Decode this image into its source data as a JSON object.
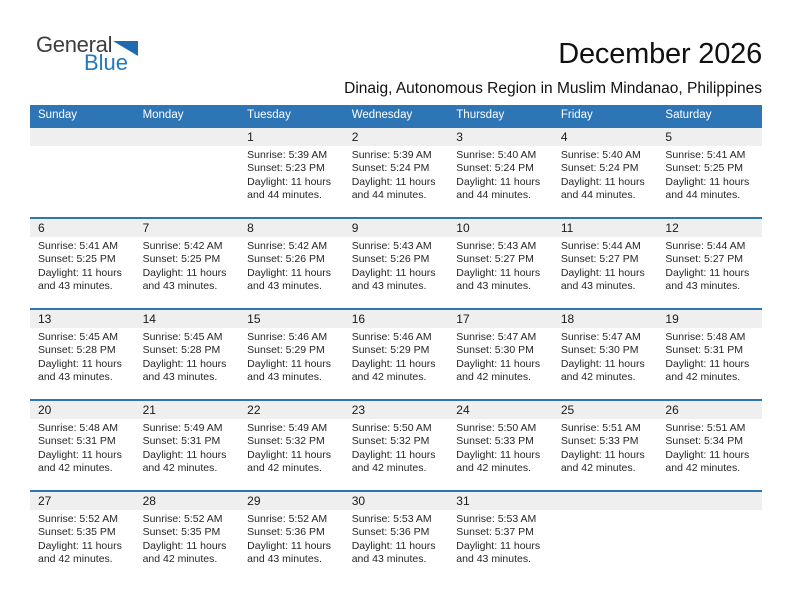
{
  "logo": {
    "text_top": "General",
    "text_bottom": "Blue"
  },
  "page": {
    "title": "December 2026",
    "subtitle": "Dinaig, Autonomous Region in Muslim Mindanao, Philippines"
  },
  "colors": {
    "header_blue": "#2E75B6",
    "row_border_blue": "#2E75B6",
    "day_band_gray": "#EFEFEF",
    "logo_blue": "#2278BF",
    "logo_triangle_blue": "#1E6CB0",
    "logo_dark": "#3D3D3D",
    "text_dark": "#262626"
  },
  "calendar": {
    "day_headers": [
      "Sunday",
      "Monday",
      "Tuesday",
      "Wednesday",
      "Thursday",
      "Friday",
      "Saturday"
    ],
    "weeks": [
      [
        {
          "day": "",
          "lines": []
        },
        {
          "day": "",
          "lines": []
        },
        {
          "day": "1",
          "lines": [
            "Sunrise: 5:39 AM",
            "Sunset: 5:23 PM",
            "Daylight: 11 hours",
            "and 44 minutes."
          ]
        },
        {
          "day": "2",
          "lines": [
            "Sunrise: 5:39 AM",
            "Sunset: 5:24 PM",
            "Daylight: 11 hours",
            "and 44 minutes."
          ]
        },
        {
          "day": "3",
          "lines": [
            "Sunrise: 5:40 AM",
            "Sunset: 5:24 PM",
            "Daylight: 11 hours",
            "and 44 minutes."
          ]
        },
        {
          "day": "4",
          "lines": [
            "Sunrise: 5:40 AM",
            "Sunset: 5:24 PM",
            "Daylight: 11 hours",
            "and 44 minutes."
          ]
        },
        {
          "day": "5",
          "lines": [
            "Sunrise: 5:41 AM",
            "Sunset: 5:25 PM",
            "Daylight: 11 hours",
            "and 44 minutes."
          ]
        }
      ],
      [
        {
          "day": "6",
          "lines": [
            "Sunrise: 5:41 AM",
            "Sunset: 5:25 PM",
            "Daylight: 11 hours",
            "and 43 minutes."
          ]
        },
        {
          "day": "7",
          "lines": [
            "Sunrise: 5:42 AM",
            "Sunset: 5:25 PM",
            "Daylight: 11 hours",
            "and 43 minutes."
          ]
        },
        {
          "day": "8",
          "lines": [
            "Sunrise: 5:42 AM",
            "Sunset: 5:26 PM",
            "Daylight: 11 hours",
            "and 43 minutes."
          ]
        },
        {
          "day": "9",
          "lines": [
            "Sunrise: 5:43 AM",
            "Sunset: 5:26 PM",
            "Daylight: 11 hours",
            "and 43 minutes."
          ]
        },
        {
          "day": "10",
          "lines": [
            "Sunrise: 5:43 AM",
            "Sunset: 5:27 PM",
            "Daylight: 11 hours",
            "and 43 minutes."
          ]
        },
        {
          "day": "11",
          "lines": [
            "Sunrise: 5:44 AM",
            "Sunset: 5:27 PM",
            "Daylight: 11 hours",
            "and 43 minutes."
          ]
        },
        {
          "day": "12",
          "lines": [
            "Sunrise: 5:44 AM",
            "Sunset: 5:27 PM",
            "Daylight: 11 hours",
            "and 43 minutes."
          ]
        }
      ],
      [
        {
          "day": "13",
          "lines": [
            "Sunrise: 5:45 AM",
            "Sunset: 5:28 PM",
            "Daylight: 11 hours",
            "and 43 minutes."
          ]
        },
        {
          "day": "14",
          "lines": [
            "Sunrise: 5:45 AM",
            "Sunset: 5:28 PM",
            "Daylight: 11 hours",
            "and 43 minutes."
          ]
        },
        {
          "day": "15",
          "lines": [
            "Sunrise: 5:46 AM",
            "Sunset: 5:29 PM",
            "Daylight: 11 hours",
            "and 43 minutes."
          ]
        },
        {
          "day": "16",
          "lines": [
            "Sunrise: 5:46 AM",
            "Sunset: 5:29 PM",
            "Daylight: 11 hours",
            "and 42 minutes."
          ]
        },
        {
          "day": "17",
          "lines": [
            "Sunrise: 5:47 AM",
            "Sunset: 5:30 PM",
            "Daylight: 11 hours",
            "and 42 minutes."
          ]
        },
        {
          "day": "18",
          "lines": [
            "Sunrise: 5:47 AM",
            "Sunset: 5:30 PM",
            "Daylight: 11 hours",
            "and 42 minutes."
          ]
        },
        {
          "day": "19",
          "lines": [
            "Sunrise: 5:48 AM",
            "Sunset: 5:31 PM",
            "Daylight: 11 hours",
            "and 42 minutes."
          ]
        }
      ],
      [
        {
          "day": "20",
          "lines": [
            "Sunrise: 5:48 AM",
            "Sunset: 5:31 PM",
            "Daylight: 11 hours",
            "and 42 minutes."
          ]
        },
        {
          "day": "21",
          "lines": [
            "Sunrise: 5:49 AM",
            "Sunset: 5:31 PM",
            "Daylight: 11 hours",
            "and 42 minutes."
          ]
        },
        {
          "day": "22",
          "lines": [
            "Sunrise: 5:49 AM",
            "Sunset: 5:32 PM",
            "Daylight: 11 hours",
            "and 42 minutes."
          ]
        },
        {
          "day": "23",
          "lines": [
            "Sunrise: 5:50 AM",
            "Sunset: 5:32 PM",
            "Daylight: 11 hours",
            "and 42 minutes."
          ]
        },
        {
          "day": "24",
          "lines": [
            "Sunrise: 5:50 AM",
            "Sunset: 5:33 PM",
            "Daylight: 11 hours",
            "and 42 minutes."
          ]
        },
        {
          "day": "25",
          "lines": [
            "Sunrise: 5:51 AM",
            "Sunset: 5:33 PM",
            "Daylight: 11 hours",
            "and 42 minutes."
          ]
        },
        {
          "day": "26",
          "lines": [
            "Sunrise: 5:51 AM",
            "Sunset: 5:34 PM",
            "Daylight: 11 hours",
            "and 42 minutes."
          ]
        }
      ],
      [
        {
          "day": "27",
          "lines": [
            "Sunrise: 5:52 AM",
            "Sunset: 5:35 PM",
            "Daylight: 11 hours",
            "and 42 minutes."
          ]
        },
        {
          "day": "28",
          "lines": [
            "Sunrise: 5:52 AM",
            "Sunset: 5:35 PM",
            "Daylight: 11 hours",
            "and 42 minutes."
          ]
        },
        {
          "day": "29",
          "lines": [
            "Sunrise: 5:52 AM",
            "Sunset: 5:36 PM",
            "Daylight: 11 hours",
            "and 43 minutes."
          ]
        },
        {
          "day": "30",
          "lines": [
            "Sunrise: 5:53 AM",
            "Sunset: 5:36 PM",
            "Daylight: 11 hours",
            "and 43 minutes."
          ]
        },
        {
          "day": "31",
          "lines": [
            "Sunrise: 5:53 AM",
            "Sunset: 5:37 PM",
            "Daylight: 11 hours",
            "and 43 minutes."
          ]
        },
        {
          "day": "",
          "lines": []
        },
        {
          "day": "",
          "lines": []
        }
      ]
    ]
  }
}
